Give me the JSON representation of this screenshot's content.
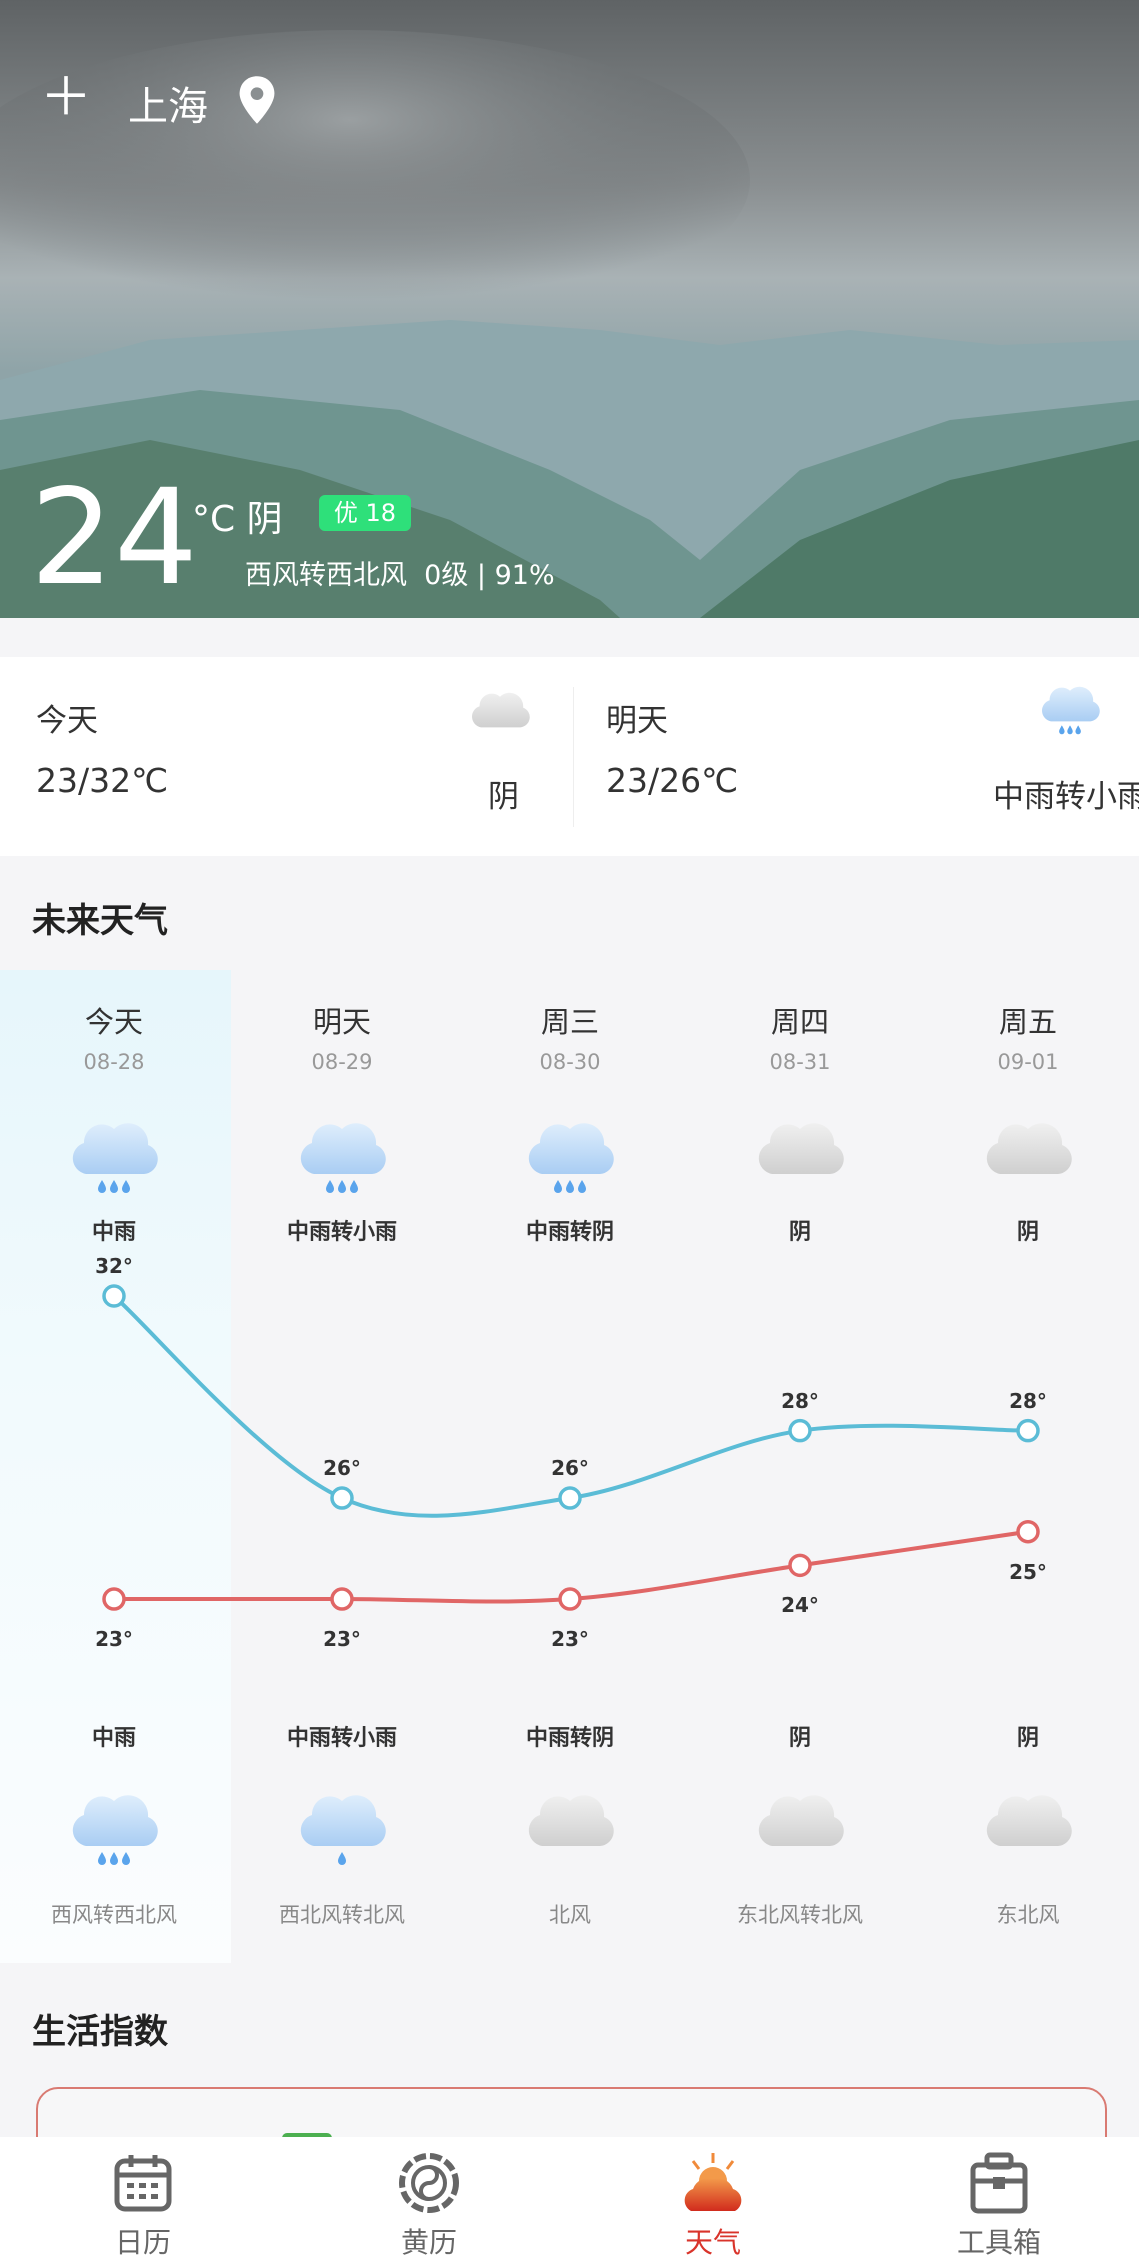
{
  "header": {
    "city": "上海",
    "add_icon": "plus-icon",
    "location_icon": "map-pin-icon"
  },
  "current": {
    "temp": "24",
    "unit_cond": "°C 阴",
    "aqi": "优 18",
    "aqi_color": "#2ee07a",
    "detail": "西风转西北风  0级 | 91%"
  },
  "summary": [
    {
      "label": "今天",
      "range": "23/32℃",
      "cond": "阴",
      "icon": "cloud"
    },
    {
      "label": "明天",
      "range": "23/26℃",
      "cond": "中雨转小雨",
      "icon": "rain-cloud"
    }
  ],
  "forecast_title": "未来天气",
  "forecast": [
    {
      "day": "今天",
      "date": "08-28",
      "day_cond": "中雨",
      "day_icon": "rain-cloud",
      "high": 32,
      "high_label": "32°",
      "low": 23,
      "low_label": "23°",
      "night_cond": "中雨",
      "night_icon": "rain-cloud",
      "wind": "西风转西北风"
    },
    {
      "day": "明天",
      "date": "08-29",
      "day_cond": "中雨转小雨",
      "day_icon": "rain-cloud",
      "high": 26,
      "high_label": "26°",
      "low": 23,
      "low_label": "23°",
      "night_cond": "中雨转小雨",
      "night_icon": "light-rain-cloud",
      "wind": "西北风转北风"
    },
    {
      "day": "周三",
      "date": "08-30",
      "day_cond": "中雨转阴",
      "day_icon": "rain-cloud",
      "high": 26,
      "high_label": "26°",
      "low": 23,
      "low_label": "23°",
      "night_cond": "中雨转阴",
      "night_icon": "cloud",
      "wind": "北风"
    },
    {
      "day": "周四",
      "date": "08-31",
      "day_cond": "阴",
      "day_icon": "cloud",
      "high": 28,
      "high_label": "28°",
      "low": 24,
      "low_label": "24°",
      "night_cond": "阴",
      "night_icon": "cloud",
      "wind": "东北风转北风"
    },
    {
      "day": "周五",
      "date": "09-01",
      "day_cond": "阴",
      "day_icon": "cloud",
      "high": 28,
      "high_label": "28°",
      "low": 25,
      "low_label": "25°",
      "night_cond": "阴",
      "night_icon": "cloud",
      "wind": "东北风"
    }
  ],
  "chart_colors": {
    "high": "#5bbcd6",
    "low": "#e06666"
  },
  "life_title": "生活指数",
  "nav": [
    {
      "label": "日历",
      "icon": "calendar-icon",
      "active": false
    },
    {
      "label": "黄历",
      "icon": "almanac-icon",
      "active": false
    },
    {
      "label": "天气",
      "icon": "weather-icon",
      "active": true
    },
    {
      "label": "工具箱",
      "icon": "toolbox-icon",
      "active": false
    }
  ],
  "nav_active_color": "#d9342b"
}
